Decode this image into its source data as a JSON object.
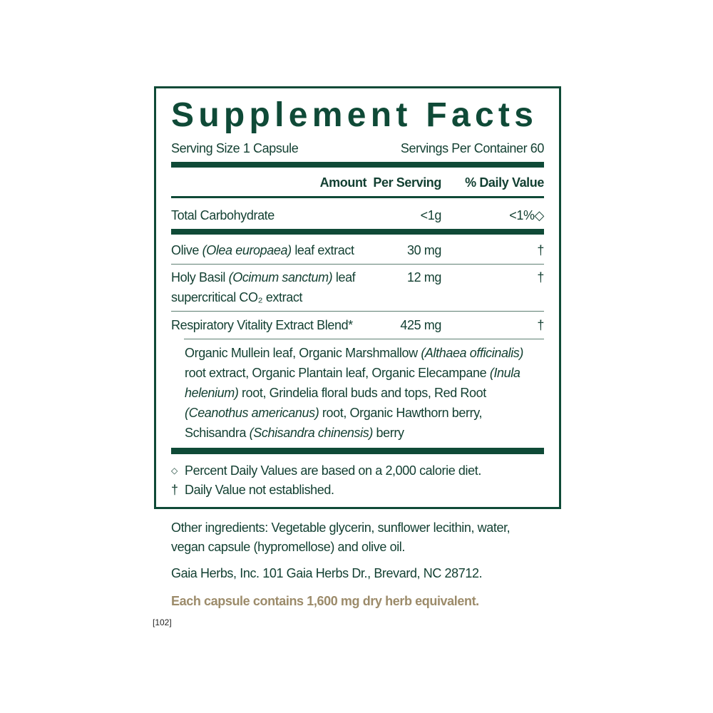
{
  "title": "Supplement Facts",
  "serving_size": "Serving Size 1 Capsule",
  "servings_per_container": "Servings Per Container 60",
  "header": {
    "amount": "Amount  Per Serving",
    "daily_value": "% Daily Value"
  },
  "rows": [
    {
      "name": "Total Carbohydrate",
      "amount": "<1g",
      "dv": "<1%◇"
    },
    {
      "name_pre": "Olive ",
      "name_italic": "(Olea europaea)",
      "name_post": " leaf extract",
      "amount": "30 mg",
      "dv": "†"
    },
    {
      "name_pre": "Holy Basil ",
      "name_italic": "(Ocimum sanctum)",
      "name_post": " leaf",
      "name_line2": "supercritical CO₂ extract",
      "amount": "12 mg",
      "dv": "†"
    },
    {
      "name": "Respiratory Vitality Extract Blend*",
      "amount": "425 mg",
      "dv": "†"
    }
  ],
  "blend": {
    "l1a": "Organic Mullein leaf, Organic Marshmallow ",
    "l1b": "(Althaea officinalis)",
    "l2a": "root extract, Organic Plantain leaf, Organic Elecampane ",
    "l2b": "(Inula",
    "l3a": "helenium)",
    "l3b": " root, Grindelia floral buds and tops, Red Root",
    "l4a": "(Ceanothus americanus)",
    "l4b": " root, Organic Hawthorn berry,",
    "l5a": "Schisandra ",
    "l5b": "(Schisandra chinensis)",
    "l5c": " berry"
  },
  "footnotes": [
    {
      "symbol": "◇",
      "text": "Percent Daily Values are based on a 2,000 calorie diet."
    },
    {
      "symbol": "†",
      "text": "Daily Value not established."
    }
  ],
  "other_ingredients_1": "Other ingredients: Vegetable glycerin, sunflower lecithin, water,",
  "other_ingredients_2": "vegan capsule (hypromellose) and olive oil.",
  "address": "Gaia Herbs, Inc. 101 Gaia Herbs Dr., Brevard, NC 28712.",
  "herb_equivalent": "Each capsule contains 1,600 mg dry herb equivalent.",
  "code": "[102]",
  "colors": {
    "green": "#0f4a37",
    "tan": "#9c8b6a"
  }
}
